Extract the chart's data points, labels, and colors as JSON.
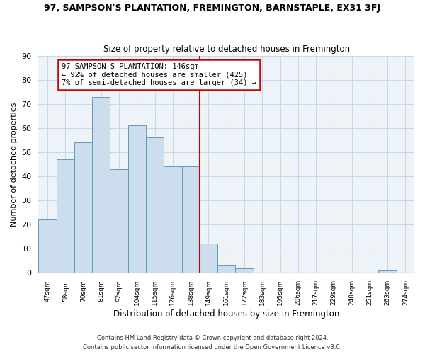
{
  "title": "97, SAMPSON'S PLANTATION, FREMINGTON, BARNSTAPLE, EX31 3FJ",
  "subtitle": "Size of property relative to detached houses in Fremington",
  "xlabel": "Distribution of detached houses by size in Fremington",
  "ylabel": "Number of detached properties",
  "bar_color": "#ccdded",
  "bar_edge_color": "#6699bb",
  "bin_labels": [
    "47sqm",
    "58sqm",
    "70sqm",
    "81sqm",
    "92sqm",
    "104sqm",
    "115sqm",
    "126sqm",
    "138sqm",
    "149sqm",
    "161sqm",
    "172sqm",
    "183sqm",
    "195sqm",
    "206sqm",
    "217sqm",
    "229sqm",
    "240sqm",
    "251sqm",
    "263sqm",
    "274sqm"
  ],
  "bar_heights": [
    22,
    47,
    54,
    73,
    43,
    61,
    56,
    44,
    44,
    12,
    3,
    2,
    0,
    0,
    0,
    0,
    0,
    0,
    0,
    1,
    0
  ],
  "ylim": [
    0,
    90
  ],
  "yticks": [
    0,
    10,
    20,
    30,
    40,
    50,
    60,
    70,
    80,
    90
  ],
  "redline_bin": 9,
  "annotation_text": "97 SAMPSON'S PLANTATION: 146sqm\n← 92% of detached houses are smaller (425)\n7% of semi-detached houses are larger (34) →",
  "annotation_box_color": "#ffffff",
  "annotation_box_edge": "#cc0000",
  "footer_line1": "Contains HM Land Registry data © Crown copyright and database right 2024.",
  "footer_line2": "Contains public sector information licensed under the Open Government Licence v3.0.",
  "redline_color": "#cc0000",
  "background_color": "#ffffff",
  "plot_bg_color": "#eef3f8",
  "grid_color": "#c8d8e8"
}
